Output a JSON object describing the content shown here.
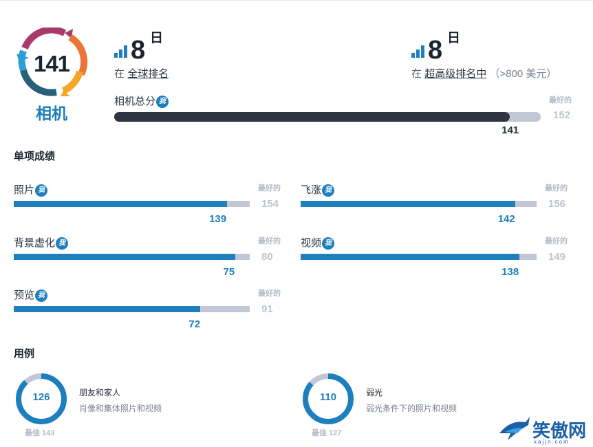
{
  "badge": {
    "score": "141",
    "label": "相机"
  },
  "ranks": [
    {
      "number": "8",
      "suffix": "日",
      "prefix": "在",
      "link": "全球排名",
      "extra": ""
    },
    {
      "number": "8",
      "suffix": "日",
      "prefix": "在",
      "link": "超高级排名中",
      "extra": "（>800 美元）"
    }
  ],
  "info_glyph": "我",
  "total": {
    "label": "相机总分",
    "best_label": "最好的",
    "best": 152,
    "value": 141
  },
  "section_titles": {
    "sub_scores": "单项成绩",
    "use_cases": "用例"
  },
  "sub_scores": [
    {
      "label": "照片",
      "value": 139,
      "best": 154,
      "best_label": "最好的"
    },
    {
      "label": "飞涨",
      "value": 142,
      "best": 156,
      "best_label": "最好的"
    },
    {
      "label": "背景虚化",
      "value": 75,
      "best": 80,
      "best_label": "最好的"
    },
    {
      "label": "视频",
      "value": 138,
      "best": 149,
      "best_label": "最好的"
    },
    {
      "label": "预览",
      "value": 72,
      "best": 91,
      "best_label": "最好的"
    }
  ],
  "use_cases": [
    {
      "value": 126,
      "best": 143,
      "best_text": "最佳 143",
      "title": "朋友和家人",
      "desc": "肖像和集体照片和视频"
    },
    {
      "value": 110,
      "best": 127,
      "best_text": "最佳 127",
      "title": "弱光",
      "desc": "弱光条件下的照片和视频"
    }
  ],
  "watermark": {
    "text": "笑傲网",
    "sub": "xajjn.com"
  },
  "colors": {
    "accent": "#1d7fbd",
    "dark_fill": "#2f3542",
    "track": "#c2c7d6",
    "muted": "#b4b9c5"
  }
}
